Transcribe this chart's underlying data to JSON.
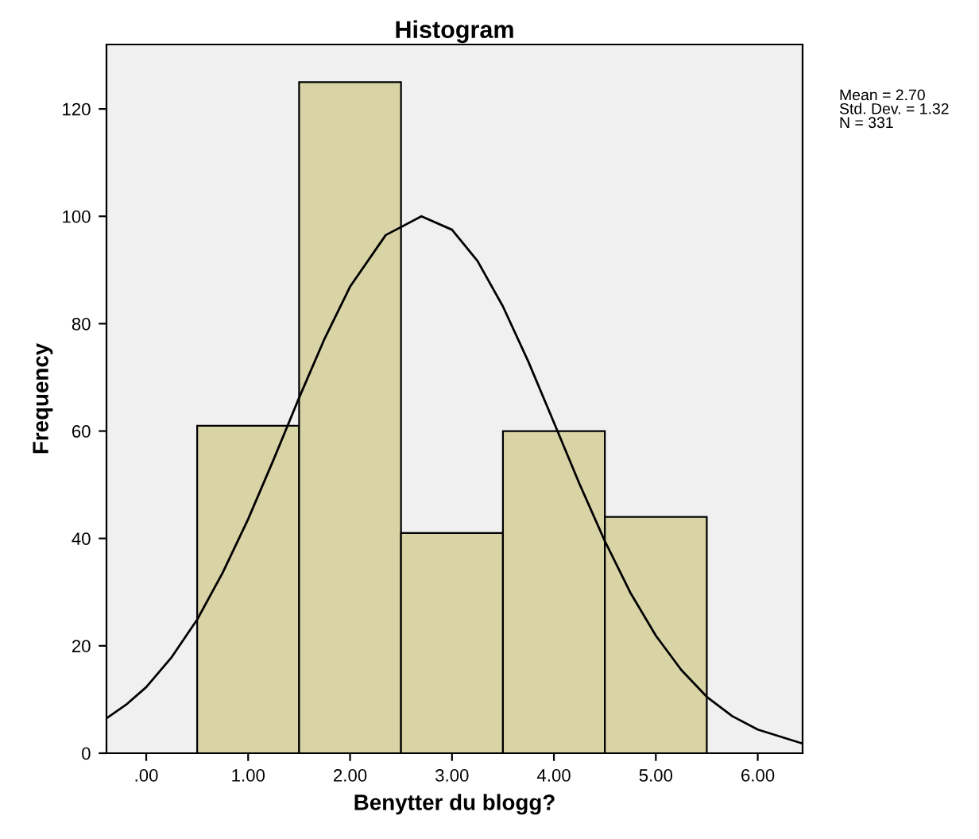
{
  "chart_data": {
    "type": "histogram",
    "title": "Histogram",
    "xlabel": "Benytter du blogg?",
    "ylabel": "Frequency",
    "bins": [
      0.5,
      1.5,
      2.5,
      3.5,
      4.5,
      5.5
    ],
    "values": [
      61,
      125,
      41,
      60,
      44
    ],
    "color": "#d8d4a6",
    "series": [
      {
        "type": "line",
        "color": "#000000",
        "x": [
          -0.39,
          -0.2,
          0,
          0.25,
          0.5,
          0.75,
          1.0,
          1.25,
          1.5,
          1.75,
          2.0,
          2.35,
          2.7,
          3.0,
          3.25,
          3.5,
          3.75,
          4.0,
          4.25,
          4.5,
          4.75,
          5.0,
          5.25,
          5.5,
          5.75,
          6.0,
          6.44
        ],
        "values": [
          6.5,
          9.0,
          12.3,
          17.9,
          24.9,
          33.6,
          43.6,
          54.7,
          66.2,
          77.2,
          86.9,
          96.5,
          100,
          97.5,
          91.7,
          83.2,
          72.9,
          61.6,
          50.2,
          39.5,
          29.9,
          21.9,
          15.5,
          10.5,
          6.9,
          4.4,
          1.8
        ]
      }
    ],
    "xlim": [
      -0.39,
      6.44
    ],
    "ylim": [
      0,
      132
    ],
    "xticks": [
      {
        "value": 0,
        "label": ".00"
      },
      {
        "value": 1,
        "label": "1.00"
      },
      {
        "value": 2,
        "label": "2.00"
      },
      {
        "value": 3,
        "label": "3.00"
      },
      {
        "value": 4,
        "label": "4.00"
      },
      {
        "value": 5,
        "label": "5.00"
      },
      {
        "value": 6,
        "label": "6.00"
      }
    ],
    "yticks": [
      0,
      20,
      40,
      60,
      80,
      100,
      120
    ],
    "annotations": [
      "Mean = 2.70\nStd. Dev. = 1.32\nN = 331"
    ]
  }
}
